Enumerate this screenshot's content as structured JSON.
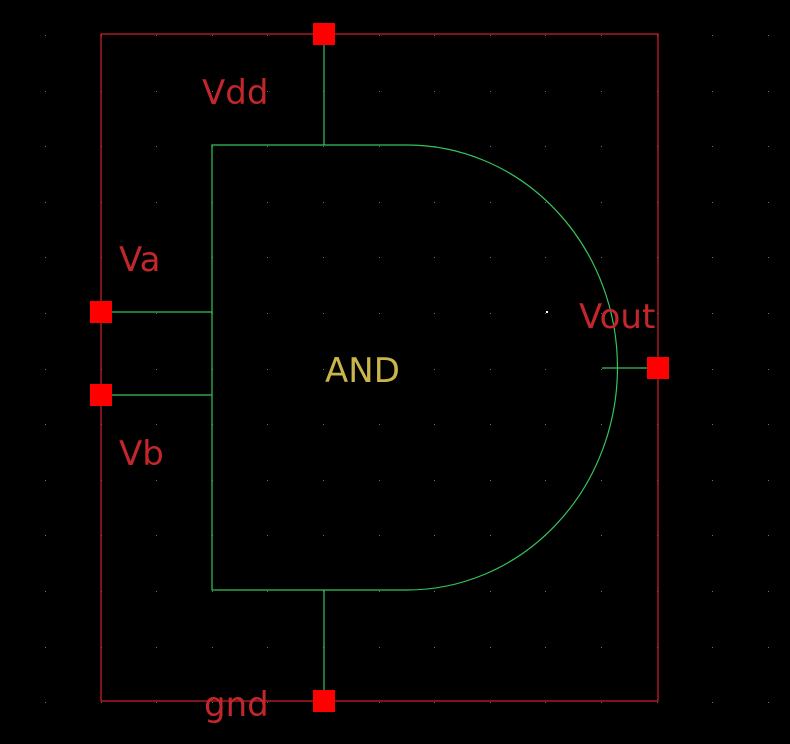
{
  "symbol": {
    "gate_label": "AND",
    "pins": {
      "vdd": "Vdd",
      "va": "Va",
      "vb": "Vb",
      "vout": "Vout",
      "gnd": "gnd"
    }
  },
  "colors": {
    "background": "#000000",
    "grid_dot": "#6f6f6f",
    "boundary": "#d2222a",
    "pin": "#ff0000",
    "pin_label": "#c3262b",
    "wire": "#35c35a",
    "gate_label": "#c9b54a",
    "origin_marker": "#ffffff"
  }
}
